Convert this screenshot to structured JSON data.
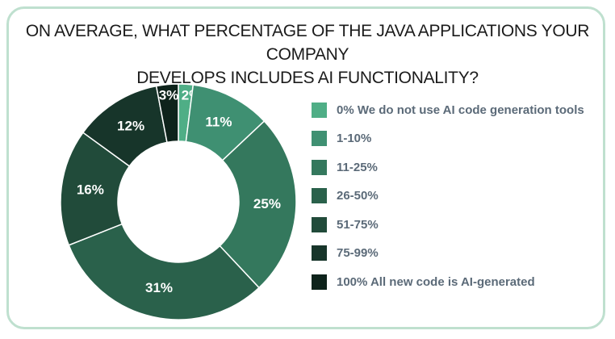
{
  "chart_data": {
    "type": "pie",
    "donut": true,
    "title_lines": [
      "ON AVERAGE, WHAT PERCENTAGE OF THE JAVA APPLICATIONS YOUR COMPANY",
      "DEVELOPS INCLUDES AI FUNCTIONALITY?"
    ],
    "slices": [
      {
        "label": "0% We do not use AI code generation tools",
        "value": 2,
        "value_label": "2%",
        "color": "#4fae86"
      },
      {
        "label": "1-10%",
        "value": 11,
        "value_label": "11%",
        "color": "#3f9072"
      },
      {
        "label": "11-25%",
        "value": 25,
        "value_label": "25%",
        "color": "#34785d"
      },
      {
        "label": "26-50%",
        "value": 31,
        "value_label": "31%",
        "color": "#2a614b"
      },
      {
        "label": "51-75%",
        "value": 16,
        "value_label": "16%",
        "color": "#214b3a"
      },
      {
        "label": "75-99%",
        "value": 12,
        "value_label": "12%",
        "color": "#17352a"
      },
      {
        "label": "100% All new code is AI-generated",
        "value": 3,
        "value_label": "3%",
        "color": "#0e231b"
      }
    ],
    "legend_position": "right"
  }
}
